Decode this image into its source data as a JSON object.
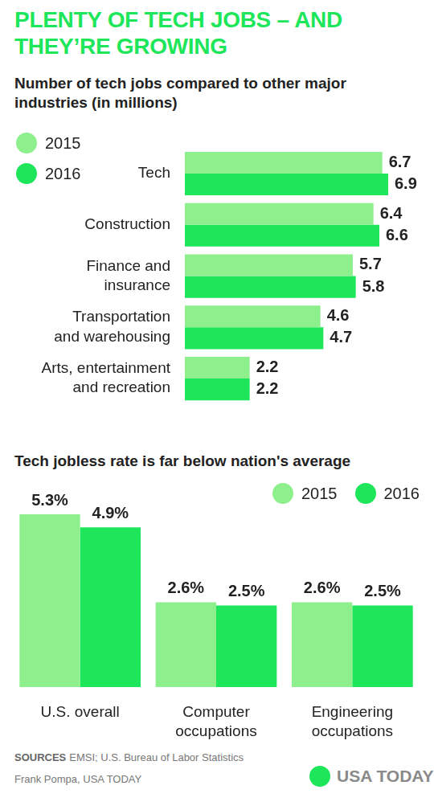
{
  "title": "PLENTY OF TECH JOBS – AND THEY’RE GROWING",
  "chart_data": [
    {
      "type": "bar",
      "title": "Number of tech jobs compared to other major industries (in millions)",
      "orientation": "horizontal",
      "categories": [
        "Tech",
        "Construction",
        [
          "Finance and",
          "insurance"
        ],
        [
          "Transportation",
          "and warehousing"
        ],
        [
          "Arts, entertainment",
          "and recreation"
        ]
      ],
      "series": [
        {
          "name": "2015",
          "color": "#8df08d",
          "values": [
            6.7,
            6.4,
            5.7,
            4.6,
            2.2
          ]
        },
        {
          "name": "2016",
          "color": "#1de65a",
          "values": [
            6.9,
            6.6,
            5.8,
            4.7,
            2.2
          ]
        }
      ],
      "xlim": [
        0,
        6.9
      ],
      "grid": false,
      "tick_labels": "y",
      "data_labels": true,
      "legend": "upper left"
    },
    {
      "type": "bar",
      "title": "Tech jobless rate is far below nation's average",
      "categories": [
        "U.S. overall",
        [
          "Computer",
          "occupations"
        ],
        [
          "Engineering",
          "occupations"
        ]
      ],
      "series": [
        {
          "name": "2015",
          "color": "#8df08d",
          "values": [
            5.3,
            2.6,
            2.6
          ],
          "value_labels": [
            "5.3%",
            "2.6%",
            "2.6%"
          ]
        },
        {
          "name": "2016",
          "color": "#1de65a",
          "values": [
            4.9,
            2.5,
            2.5
          ],
          "value_labels": [
            "4.9%",
            "2.5%",
            "2.5%"
          ]
        }
      ],
      "ylim": [
        0,
        5.3
      ],
      "grid": false,
      "tick_labels": "x",
      "data_labels": true,
      "legend": "upper right"
    }
  ],
  "source_label": "SOURCES",
  "sources": "EMSI; U.S. Bureau of Labor Statistics",
  "credit": "Frank Pompa, USA TODAY",
  "logo": "USA TODAY"
}
